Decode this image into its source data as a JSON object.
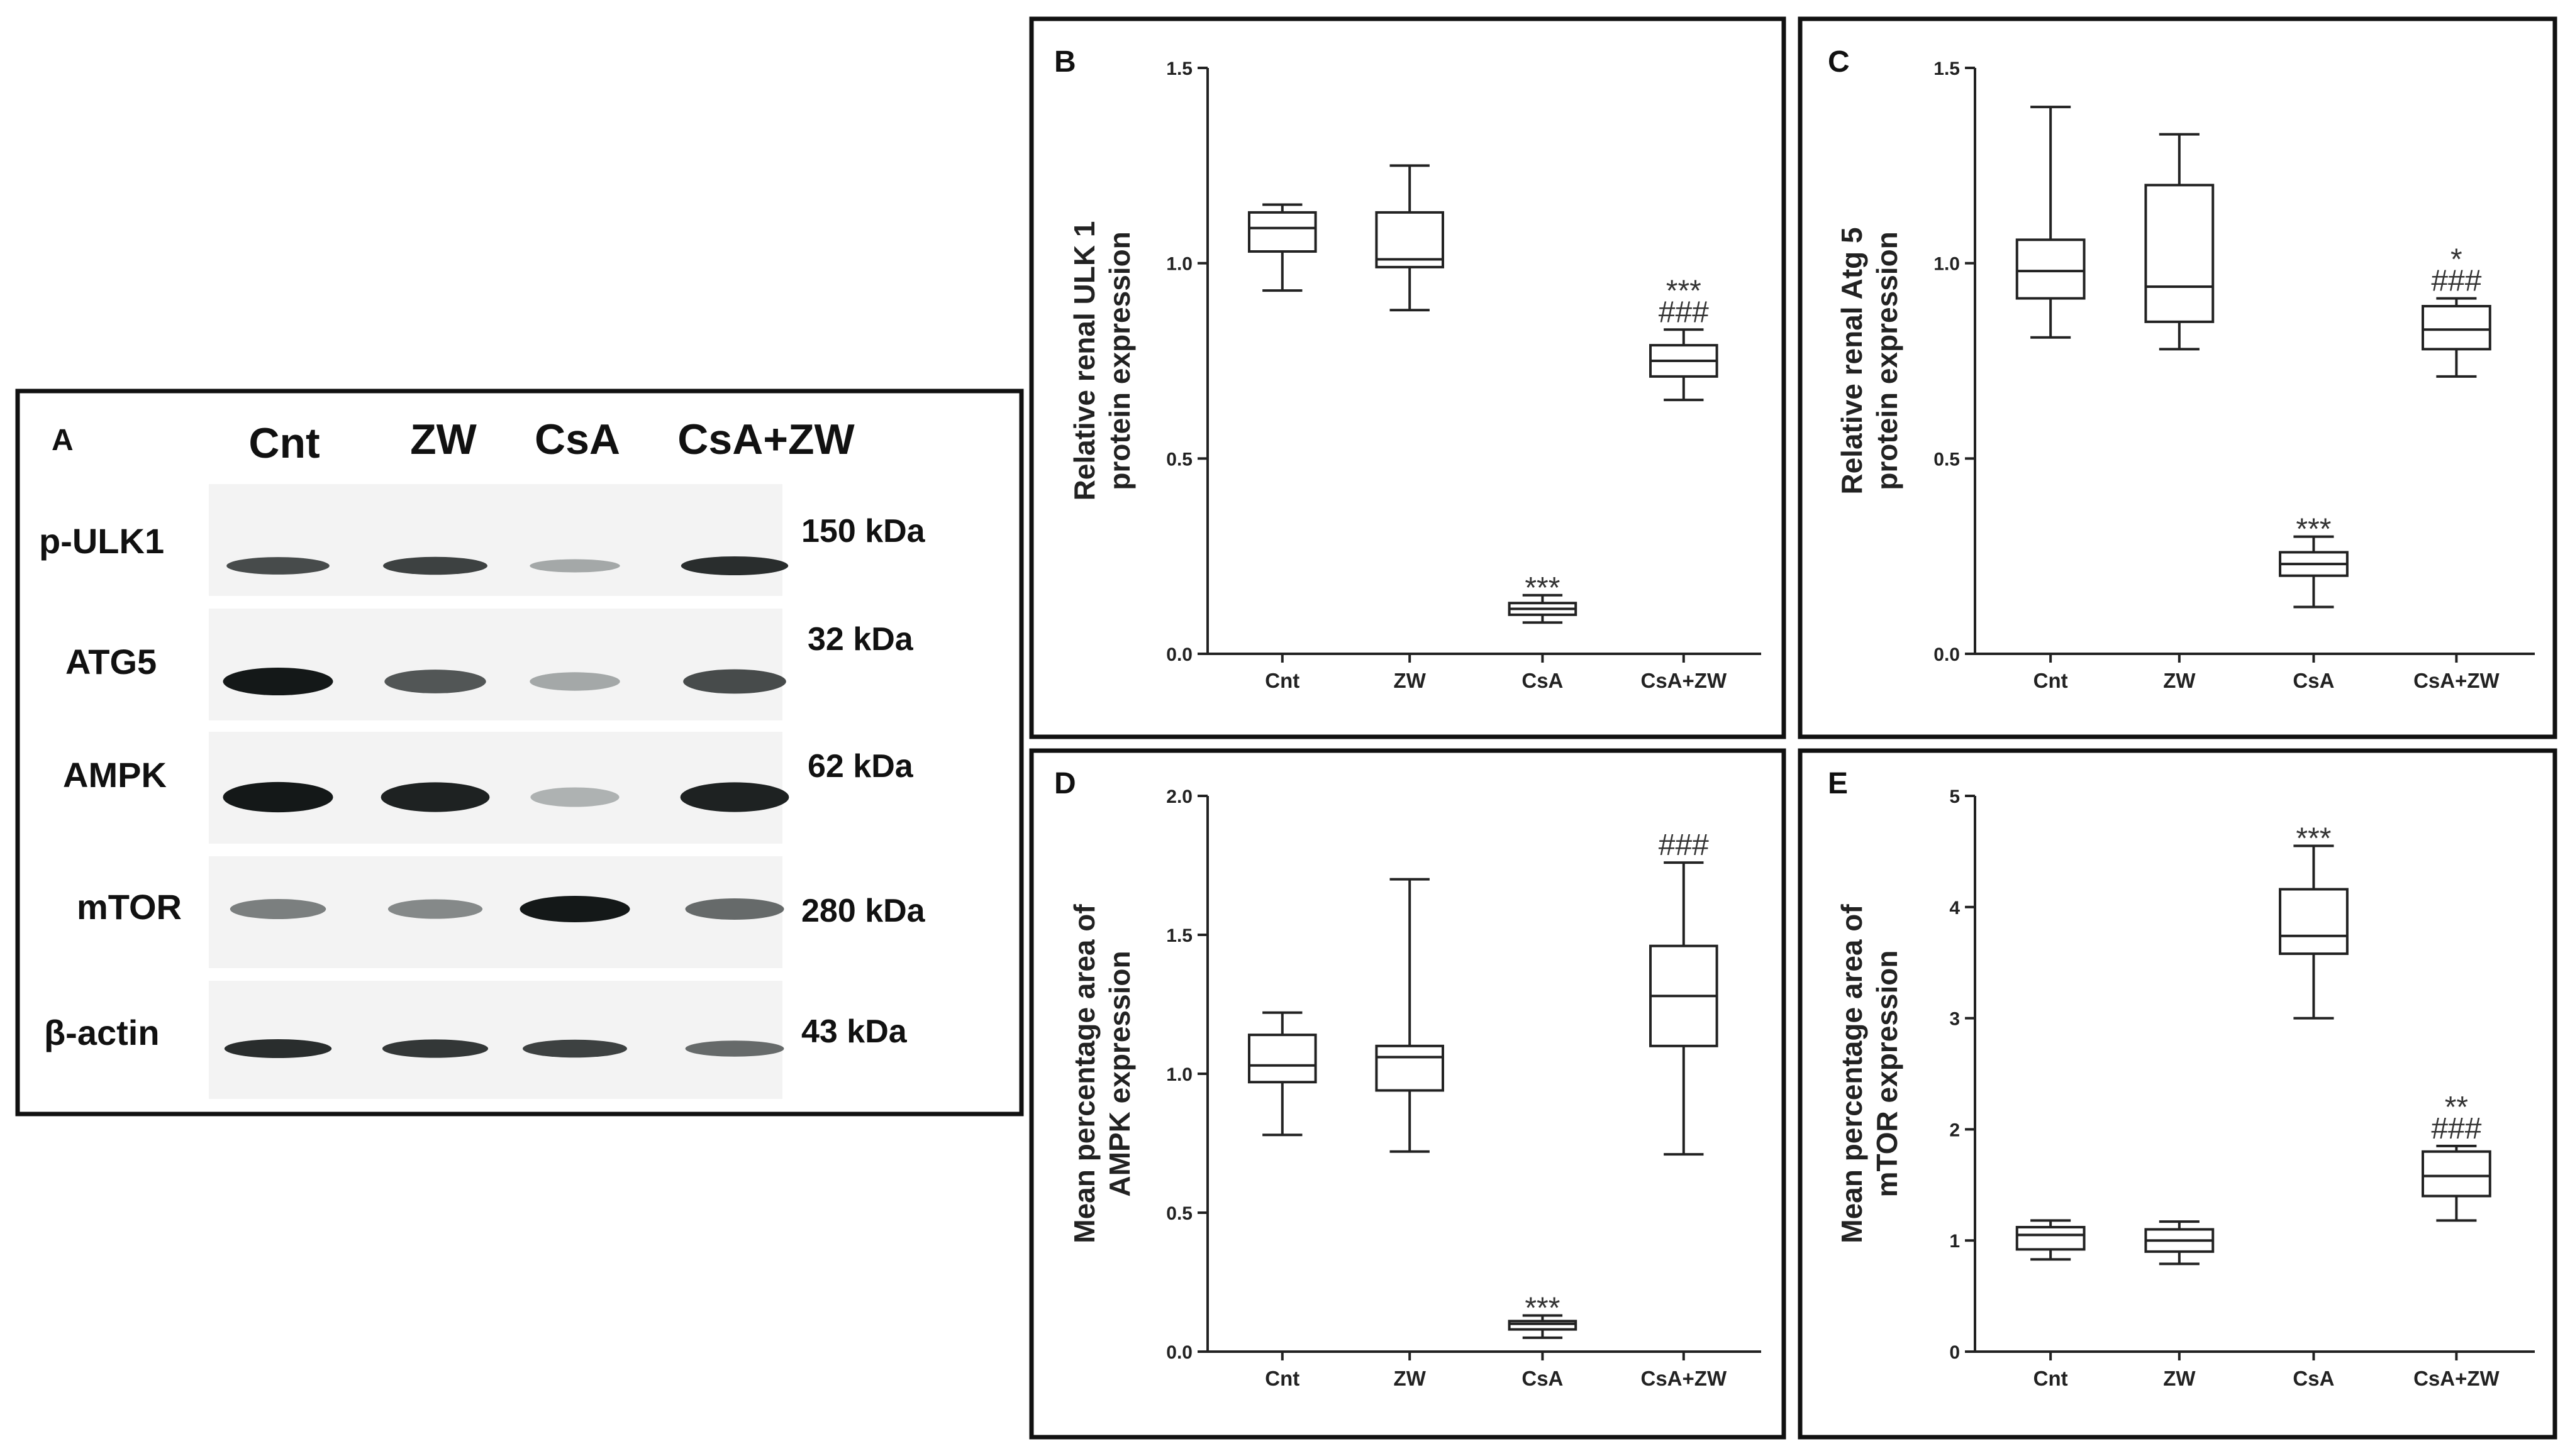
{
  "panel_a": {
    "label": "A",
    "lanes": [
      "Cnt",
      "ZW",
      "CsA",
      "CsA+ZW"
    ],
    "rows": [
      {
        "protein": "p-ULK1",
        "kda": "150 kDa",
        "intensity": [
          0.75,
          0.8,
          0.3,
          0.9
        ]
      },
      {
        "protein": "ATG5",
        "kda": "32 kDa",
        "intensity": [
          1.0,
          0.7,
          0.3,
          0.75
        ]
      },
      {
        "protein": "AMPK",
        "kda": "62 kDa",
        "intensity": [
          1.0,
          0.95,
          0.25,
          0.95
        ]
      },
      {
        "protein": "mTOR",
        "kda": "280 kDa",
        "intensity": [
          0.5,
          0.45,
          1.0,
          0.6
        ]
      },
      {
        "protein": "β-actin",
        "kda": "43 kDa",
        "intensity": [
          0.9,
          0.85,
          0.8,
          0.6
        ]
      }
    ]
  },
  "chart_data": [
    {
      "panel": "B",
      "type": "box",
      "ylabel_lines": [
        "Relative renal ULK 1",
        "protein expression"
      ],
      "ylim": [
        0,
        1.5
      ],
      "yticks": [
        0.0,
        0.5,
        1.0,
        1.5
      ],
      "ytick_labels": [
        "0.0",
        "0.5",
        "1.0",
        "1.5"
      ],
      "categories": [
        "Cnt",
        "ZW",
        "CsA",
        "CsA+ZW"
      ],
      "boxes": [
        {
          "min": 0.93,
          "q1": 1.03,
          "median": 1.09,
          "q3": 1.13,
          "max": 1.15
        },
        {
          "min": 0.88,
          "q1": 0.99,
          "median": 1.01,
          "q3": 1.13,
          "max": 1.25
        },
        {
          "min": 0.08,
          "q1": 0.1,
          "median": 0.115,
          "q3": 0.13,
          "max": 0.15
        },
        {
          "min": 0.65,
          "q1": 0.71,
          "median": 0.75,
          "q3": 0.79,
          "max": 0.83
        }
      ],
      "annotations": [
        [],
        [],
        [
          "***"
        ],
        [
          "***",
          "###"
        ]
      ]
    },
    {
      "panel": "C",
      "type": "box",
      "ylabel_lines": [
        "Relative renal Atg 5",
        "protein expression"
      ],
      "ylim": [
        0,
        1.5
      ],
      "yticks": [
        0.0,
        0.5,
        1.0,
        1.5
      ],
      "ytick_labels": [
        "0.0",
        "0.5",
        "1.0",
        "1.5"
      ],
      "categories": [
        "Cnt",
        "ZW",
        "CsA",
        "CsA+ZW"
      ],
      "boxes": [
        {
          "min": 0.81,
          "q1": 0.91,
          "median": 0.98,
          "q3": 1.06,
          "max": 1.4
        },
        {
          "min": 0.78,
          "q1": 0.85,
          "median": 0.94,
          "q3": 1.2,
          "max": 1.33
        },
        {
          "min": 0.12,
          "q1": 0.2,
          "median": 0.23,
          "q3": 0.26,
          "max": 0.3
        },
        {
          "min": 0.71,
          "q1": 0.78,
          "median": 0.83,
          "q3": 0.89,
          "max": 0.91
        }
      ],
      "annotations": [
        [],
        [],
        [
          "***"
        ],
        [
          "*",
          "###"
        ]
      ]
    },
    {
      "panel": "D",
      "type": "box",
      "ylabel_lines": [
        "Mean percentage area of",
        "AMPK expression"
      ],
      "ylim": [
        0,
        2.0
      ],
      "yticks": [
        0.0,
        0.5,
        1.0,
        1.5,
        2.0
      ],
      "ytick_labels": [
        "0.0",
        "0.5",
        "1.0",
        "1.5",
        "2.0"
      ],
      "categories": [
        "Cnt",
        "ZW",
        "CsA",
        "CsA+ZW"
      ],
      "boxes": [
        {
          "min": 0.78,
          "q1": 0.97,
          "median": 1.03,
          "q3": 1.14,
          "max": 1.22
        },
        {
          "min": 0.72,
          "q1": 0.94,
          "median": 1.06,
          "q3": 1.1,
          "max": 1.7
        },
        {
          "min": 0.05,
          "q1": 0.08,
          "median": 0.1,
          "q3": 0.11,
          "max": 0.13
        },
        {
          "min": 0.71,
          "q1": 1.1,
          "median": 1.28,
          "q3": 1.46,
          "max": 1.76
        }
      ],
      "annotations": [
        [],
        [],
        [
          "***"
        ],
        [
          "###"
        ]
      ]
    },
    {
      "panel": "E",
      "type": "box",
      "ylabel_lines": [
        "Mean percentage area of",
        "mTOR expression"
      ],
      "ylim": [
        0,
        5
      ],
      "yticks": [
        0,
        1,
        2,
        3,
        4,
        5
      ],
      "ytick_labels": [
        "0",
        "1",
        "2",
        "3",
        "4",
        "5"
      ],
      "categories": [
        "Cnt",
        "ZW",
        "CsA",
        "CsA+ZW"
      ],
      "boxes": [
        {
          "min": 0.83,
          "q1": 0.92,
          "median": 1.05,
          "q3": 1.12,
          "max": 1.18
        },
        {
          "min": 0.79,
          "q1": 0.9,
          "median": 1.0,
          "q3": 1.1,
          "max": 1.17
        },
        {
          "min": 3.0,
          "q1": 3.58,
          "median": 3.74,
          "q3": 4.16,
          "max": 4.55
        },
        {
          "min": 1.18,
          "q1": 1.4,
          "median": 1.58,
          "q3": 1.8,
          "max": 1.85
        }
      ],
      "annotations": [
        [],
        [],
        [
          "***"
        ],
        [
          "**",
          "###"
        ]
      ]
    }
  ]
}
